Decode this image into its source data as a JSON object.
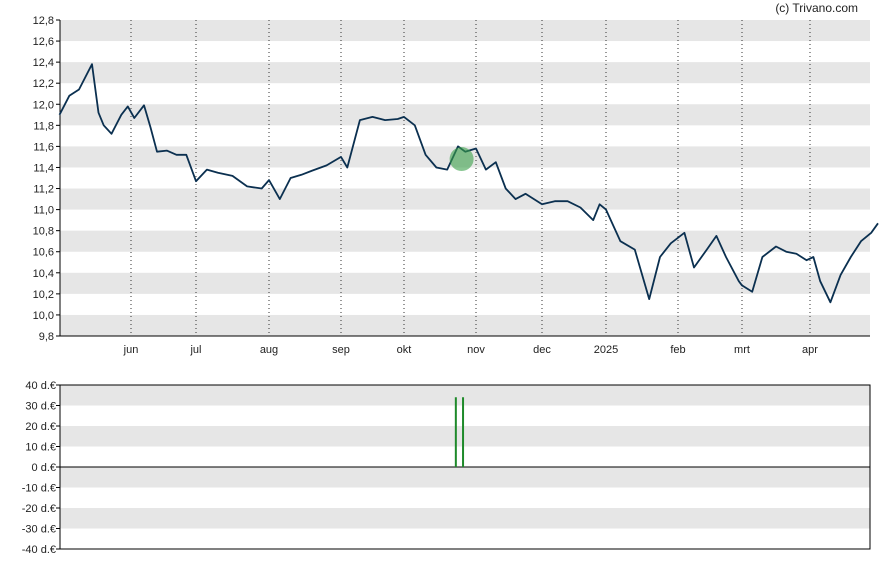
{
  "credit": "(c) Trivano.com",
  "colors": {
    "price_line": "#0b3050",
    "band": "#e6e6e6",
    "volume": "#1e8a2a",
    "marker": "#3aa04a"
  },
  "chart_data": [
    {
      "type": "line",
      "name": "price",
      "title": "",
      "xlabel": "",
      "ylabel": "",
      "x_ticks": [
        "jun",
        "jul",
        "aug",
        "sep",
        "okt",
        "nov",
        "dec",
        "2025",
        "feb",
        "mrt",
        "apr"
      ],
      "y_ticks": [
        "9,8",
        "10,0",
        "10,2",
        "10,4",
        "10,6",
        "10,8",
        "11,0",
        "11,2",
        "11,4",
        "11,6",
        "11,8",
        "12,0",
        "12,2",
        "12,4",
        "12,6",
        "12,8"
      ],
      "ylim": [
        9.8,
        12.8
      ],
      "grid": true,
      "x_unit": "month-index (0 = start of jun)",
      "points": [
        [
          -1.1,
          11.9
        ],
        [
          -0.95,
          12.08
        ],
        [
          -0.8,
          12.14
        ],
        [
          -0.6,
          12.38
        ],
        [
          -0.5,
          11.92
        ],
        [
          -0.42,
          11.8
        ],
        [
          -0.3,
          11.72
        ],
        [
          -0.15,
          11.9
        ],
        [
          -0.05,
          11.98
        ],
        [
          0.05,
          11.87
        ],
        [
          0.2,
          11.99
        ],
        [
          0.3,
          11.78
        ],
        [
          0.4,
          11.55
        ],
        [
          0.55,
          11.56
        ],
        [
          0.7,
          11.52
        ],
        [
          0.85,
          11.52
        ],
        [
          1.0,
          11.27
        ],
        [
          1.15,
          11.38
        ],
        [
          1.3,
          11.35
        ],
        [
          1.5,
          11.32
        ],
        [
          1.7,
          11.22
        ],
        [
          1.9,
          11.2
        ],
        [
          2.0,
          11.28
        ],
        [
          2.15,
          11.1
        ],
        [
          2.3,
          11.3
        ],
        [
          2.45,
          11.33
        ],
        [
          2.6,
          11.37
        ],
        [
          2.8,
          11.42
        ],
        [
          3.0,
          11.5
        ],
        [
          3.1,
          11.4
        ],
        [
          3.3,
          11.85
        ],
        [
          3.5,
          11.88
        ],
        [
          3.7,
          11.85
        ],
        [
          3.9,
          11.86
        ],
        [
          4.0,
          11.88
        ],
        [
          4.15,
          11.8
        ],
        [
          4.3,
          11.52
        ],
        [
          4.45,
          11.4
        ],
        [
          4.6,
          11.38
        ],
        [
          4.75,
          11.6
        ],
        [
          4.85,
          11.55
        ],
        [
          5.0,
          11.58
        ],
        [
          5.15,
          11.38
        ],
        [
          5.3,
          11.45
        ],
        [
          5.45,
          11.2
        ],
        [
          5.6,
          11.1
        ],
        [
          5.75,
          11.15
        ],
        [
          6.0,
          11.05
        ],
        [
          6.2,
          11.08
        ],
        [
          6.4,
          11.08
        ],
        [
          6.6,
          11.02
        ],
        [
          6.8,
          10.9
        ],
        [
          6.9,
          11.05
        ],
        [
          7.0,
          11.0
        ],
        [
          7.2,
          10.7
        ],
        [
          7.4,
          10.62
        ],
        [
          7.6,
          10.15
        ],
        [
          7.75,
          10.55
        ],
        [
          7.9,
          10.68
        ],
        [
          8.1,
          10.78
        ],
        [
          8.25,
          10.45
        ],
        [
          8.45,
          10.62
        ],
        [
          8.6,
          10.75
        ],
        [
          8.75,
          10.55
        ],
        [
          8.95,
          10.32
        ],
        [
          9.0,
          10.28
        ],
        [
          9.15,
          10.22
        ],
        [
          9.3,
          10.55
        ],
        [
          9.5,
          10.65
        ],
        [
          9.65,
          10.6
        ],
        [
          9.8,
          10.58
        ],
        [
          9.95,
          10.52
        ],
        [
          10.05,
          10.55
        ],
        [
          10.15,
          10.32
        ],
        [
          10.3,
          10.12
        ],
        [
          10.45,
          10.38
        ],
        [
          10.6,
          10.55
        ],
        [
          10.75,
          10.7
        ],
        [
          10.9,
          10.78
        ],
        [
          11.0,
          10.87
        ]
      ],
      "marker_point": [
        4.8,
        11.48
      ]
    },
    {
      "type": "bar",
      "name": "volume",
      "title": "",
      "xlabel": "",
      "ylabel": "",
      "y_ticks": [
        "40 d.€",
        "30 d.€",
        "20 d.€",
        "10 d.€",
        "0 d.€",
        "-10 d.€",
        "-20 d.€",
        "-30 d.€",
        "-40 d.€"
      ],
      "ylim": [
        -40,
        40
      ],
      "unit": "d.€",
      "bars": [
        {
          "x": 4.72,
          "value": 34
        },
        {
          "x": 4.82,
          "value": 34
        }
      ]
    }
  ]
}
